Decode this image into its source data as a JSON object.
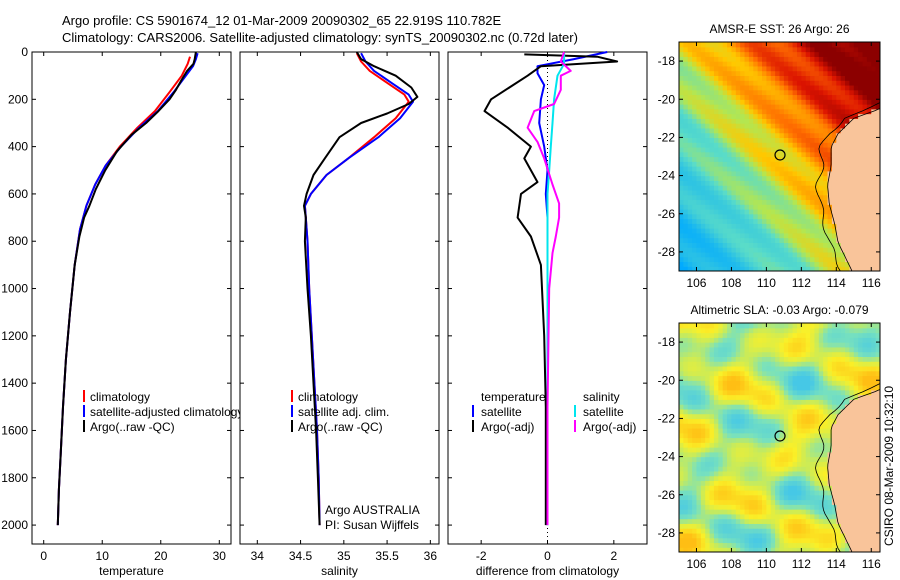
{
  "header": {
    "line1": "Argo profile: CS 5901674_12 01-Mar-2009 20090302_65 22.919S 110.782E",
    "line2": "Climatology: CARS2006. Satellite-adjusted climatology: synTS_20090302.nc (0.72d later)"
  },
  "sidebar_text": "CSIRO 08-Mar-2009 10:32:10",
  "colors": {
    "climatology": "#ff0000",
    "satellite": "#0000ff",
    "argo": "#000000",
    "satellite_sal": "#00e5ee",
    "argo_sal": "#ff00ff",
    "land": "#f9c49a"
  },
  "chart_data": [
    {
      "id": "temperature",
      "type": "line",
      "xlabel": "temperature",
      "ylabel": "",
      "xlim": [
        -2,
        32
      ],
      "ylim": [
        0,
        2080
      ],
      "y_reversed": true,
      "xticks": [
        0,
        10,
        20,
        30
      ],
      "yticks": [
        0,
        200,
        400,
        600,
        800,
        1000,
        1200,
        1400,
        1600,
        1800,
        2000
      ],
      "legend": [
        "climatology",
        "satellite-adjusted climatology",
        "Argo(..raw -QC)"
      ],
      "annotations": [],
      "series": [
        {
          "name": "climatology",
          "color": "#ff0000",
          "points": [
            [
              25,
              20
            ],
            [
              24.6,
              50
            ],
            [
              23.6,
              100
            ],
            [
              21.5,
              170
            ],
            [
              19,
              250
            ],
            [
              16,
              320
            ],
            [
              13,
              400
            ],
            [
              10.6,
              480
            ],
            [
              8.8,
              560
            ],
            [
              7.3,
              650
            ],
            [
              6.2,
              750
            ],
            [
              5.3,
              900
            ],
            [
              4.5,
              1100
            ],
            [
              3.8,
              1300
            ],
            [
              3.3,
              1500
            ],
            [
              2.9,
              1700
            ],
            [
              2.6,
              1850
            ],
            [
              2.4,
              2000
            ]
          ]
        },
        {
          "name": "satellite-adjusted climatology",
          "color": "#0000ff",
          "points": [
            [
              26.3,
              5
            ],
            [
              26.0,
              30
            ],
            [
              25.5,
              60
            ],
            [
              24.3,
              100
            ],
            [
              22.2,
              170
            ],
            [
              19.5,
              250
            ],
            [
              16.3,
              320
            ],
            [
              13.2,
              400
            ],
            [
              10.6,
              480
            ],
            [
              8.8,
              560
            ],
            [
              7.3,
              650
            ],
            [
              6.2,
              750
            ],
            [
              5.3,
              900
            ],
            [
              4.5,
              1100
            ],
            [
              3.8,
              1300
            ],
            [
              3.3,
              1500
            ],
            [
              2.9,
              1700
            ],
            [
              2.6,
              1850
            ],
            [
              2.4,
              2000
            ]
          ]
        },
        {
          "name": "Argo(..raw -QC)",
          "color": "#000000",
          "points": [
            [
              26.0,
              0
            ],
            [
              25.8,
              30
            ],
            [
              25.6,
              50
            ],
            [
              24.5,
              80
            ],
            [
              23.5,
              120
            ],
            [
              22.6,
              160
            ],
            [
              21.5,
              200
            ],
            [
              19.6,
              250
            ],
            [
              17.5,
              300
            ],
            [
              15,
              350
            ],
            [
              12.5,
              420
            ],
            [
              10.5,
              500
            ],
            [
              8.9,
              580
            ],
            [
              7.8,
              650
            ],
            [
              6.9,
              700
            ],
            [
              6.1,
              780
            ],
            [
              5.3,
              900
            ],
            [
              4.5,
              1100
            ],
            [
              3.8,
              1300
            ],
            [
              3.3,
              1500
            ],
            [
              2.9,
              1700
            ],
            [
              2.6,
              1850
            ],
            [
              2.4,
              2000
            ]
          ]
        }
      ]
    },
    {
      "id": "salinity",
      "type": "line",
      "xlabel": "salinity",
      "ylabel": "",
      "xlim": [
        33.8,
        36.1
      ],
      "ylim": [
        0,
        2080
      ],
      "y_reversed": true,
      "xticks": [
        34,
        34.5,
        35,
        35.5,
        36
      ],
      "legend": [
        "climatology",
        "satellite adj. clim.",
        "Argo(..raw -QC)"
      ],
      "annotations": [
        "Argo AUSTRALIA",
        "PI: Susan Wijffels"
      ],
      "series": [
        {
          "name": "climatology",
          "color": "#ff0000",
          "points": [
            [
              35.15,
              5
            ],
            [
              35.2,
              40
            ],
            [
              35.3,
              80
            ],
            [
              35.5,
              130
            ],
            [
              35.7,
              180
            ],
            [
              35.75,
              210
            ],
            [
              35.6,
              280
            ],
            [
              35.35,
              360
            ],
            [
              35.05,
              450
            ],
            [
              34.8,
              520
            ],
            [
              34.62,
              600
            ],
            [
              34.55,
              650
            ],
            [
              34.56,
              700
            ],
            [
              34.58,
              800
            ],
            [
              34.6,
              1000
            ],
            [
              34.63,
              1200
            ],
            [
              34.66,
              1400
            ],
            [
              34.69,
              1600
            ],
            [
              34.71,
              1800
            ],
            [
              34.72,
              2000
            ]
          ]
        },
        {
          "name": "satellite adj. clim.",
          "color": "#0000ff",
          "points": [
            [
              35.2,
              5
            ],
            [
              35.25,
              40
            ],
            [
              35.35,
              80
            ],
            [
              35.55,
              130
            ],
            [
              35.75,
              180
            ],
            [
              35.8,
              210
            ],
            [
              35.65,
              280
            ],
            [
              35.4,
              360
            ],
            [
              35.05,
              450
            ],
            [
              34.8,
              520
            ],
            [
              34.62,
              600
            ],
            [
              34.55,
              650
            ],
            [
              34.56,
              700
            ],
            [
              34.58,
              800
            ],
            [
              34.6,
              1000
            ],
            [
              34.63,
              1200
            ],
            [
              34.66,
              1400
            ],
            [
              34.69,
              1600
            ],
            [
              34.71,
              1800
            ],
            [
              34.72,
              2000
            ]
          ]
        },
        {
          "name": "Argo(..raw -QC)",
          "color": "#000000",
          "points": [
            [
              35.15,
              0
            ],
            [
              35.2,
              30
            ],
            [
              35.35,
              60
            ],
            [
              35.6,
              100
            ],
            [
              35.78,
              150
            ],
            [
              35.85,
              190
            ],
            [
              35.75,
              220
            ],
            [
              35.5,
              260
            ],
            [
              35.2,
              300
            ],
            [
              34.95,
              360
            ],
            [
              34.78,
              450
            ],
            [
              34.65,
              520
            ],
            [
              34.57,
              600
            ],
            [
              34.54,
              650
            ],
            [
              34.56,
              700
            ],
            [
              34.55,
              800
            ],
            [
              34.58,
              1000
            ],
            [
              34.62,
              1200
            ],
            [
              34.65,
              1400
            ],
            [
              34.68,
              1600
            ],
            [
              34.7,
              1800
            ],
            [
              34.72,
              2000
            ]
          ]
        }
      ]
    },
    {
      "id": "difference",
      "type": "line",
      "xlabel": "difference from climatology",
      "ylabel": "",
      "xlim": [
        -3,
        3
      ],
      "ylim": [
        0,
        2080
      ],
      "y_reversed": true,
      "xticks": [
        -2,
        0,
        2
      ],
      "legend": [
        "temperature",
        "satellite",
        "Argo(-adj)",
        "salinity",
        "satellite",
        "Argo(-adj)"
      ],
      "annotations": [],
      "series": [
        {
          "name": "satellite",
          "color": "#0000ff",
          "points": [
            [
              1.8,
              0
            ],
            [
              0.8,
              30
            ],
            [
              -0.3,
              60
            ],
            [
              -0.3,
              90
            ],
            [
              -0.1,
              140
            ],
            [
              -0.2,
              200
            ],
            [
              -0.25,
              300
            ],
            [
              -0.1,
              400
            ],
            [
              0,
              500
            ],
            [
              -0.05,
              600
            ],
            [
              0,
              700
            ],
            [
              0,
              800
            ],
            [
              0,
              1000
            ],
            [
              0,
              1500
            ],
            [
              0,
              2000
            ]
          ]
        },
        {
          "name": "Argo(-adj)",
          "color": "#000000",
          "points": [
            [
              -0.7,
              10
            ],
            [
              1.5,
              20
            ],
            [
              2.1,
              40
            ],
            [
              -0.2,
              60
            ],
            [
              -0.6,
              100
            ],
            [
              -1.7,
              200
            ],
            [
              -1.9,
              250
            ],
            [
              -1.2,
              320
            ],
            [
              -0.5,
              400
            ],
            [
              -0.7,
              450
            ],
            [
              -0.3,
              550
            ],
            [
              -0.8,
              600
            ],
            [
              -0.9,
              700
            ],
            [
              -0.5,
              780
            ],
            [
              -0.2,
              900
            ],
            [
              -0.1,
              1200
            ],
            [
              -0.05,
              1500
            ],
            [
              -0.05,
              2000
            ]
          ]
        },
        {
          "name": "satellite",
          "color": "#00e5ee",
          "points": [
            [
              0.5,
              5
            ],
            [
              0.5,
              50
            ],
            [
              0.3,
              100
            ],
            [
              0.2,
              200
            ],
            [
              0.15,
              300
            ],
            [
              0.1,
              400
            ],
            [
              0.05,
              500
            ],
            [
              0,
              600
            ],
            [
              0,
              700
            ],
            [
              0,
              800
            ],
            [
              0,
              1000
            ],
            [
              0,
              1500
            ],
            [
              0,
              2000
            ]
          ]
        },
        {
          "name": "Argo(-adj)",
          "color": "#ff00ff",
          "points": [
            [
              0.5,
              0
            ],
            [
              0.4,
              40
            ],
            [
              0.7,
              80
            ],
            [
              0.4,
              100
            ],
            [
              0.4,
              160
            ],
            [
              0.2,
              220
            ],
            [
              -0.4,
              250
            ],
            [
              -0.6,
              320
            ],
            [
              -0.3,
              380
            ],
            [
              -0.1,
              450
            ],
            [
              0.15,
              560
            ],
            [
              0.35,
              640
            ],
            [
              0.35,
              700
            ],
            [
              0.25,
              780
            ],
            [
              0.15,
              850
            ],
            [
              0.05,
              1000
            ],
            [
              0,
              1500
            ],
            [
              0,
              2000
            ]
          ]
        }
      ]
    },
    {
      "id": "sst_map",
      "type": "heatmap",
      "title": "AMSR-E SST: 26 Argo: 26",
      "xlim": [
        105,
        116.5
      ],
      "ylim": [
        -29,
        -17
      ],
      "xticks": [
        106,
        108,
        110,
        112,
        114,
        116
      ],
      "yticks": [
        -18,
        -20,
        -22,
        -24,
        -26,
        -28
      ],
      "marker": [
        110.78,
        -22.92
      ]
    },
    {
      "id": "sla_map",
      "type": "heatmap",
      "title": "Altimetric SLA: -0.03 Argo: -0.079",
      "xlim": [
        105,
        116.5
      ],
      "ylim": [
        -29,
        -17
      ],
      "xticks": [
        106,
        108,
        110,
        112,
        114,
        116
      ],
      "yticks": [
        -18,
        -20,
        -22,
        -24,
        -26,
        -28
      ],
      "marker": [
        110.78,
        -22.92
      ]
    }
  ]
}
